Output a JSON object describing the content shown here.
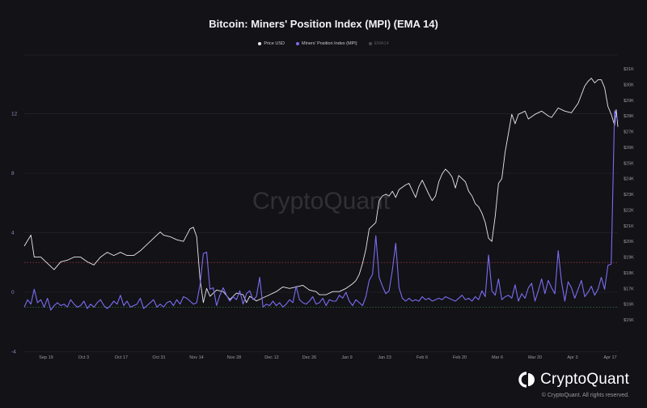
{
  "chart_data": {
    "type": "line",
    "title": "Bitcoin: Miners' Position Index (MPI) (EMA 14)",
    "legend_placement": "top-center",
    "grid": true,
    "watermark": "CryptoQuant",
    "x_tick_labels": [
      "Sep 19",
      "Oct 3",
      "Oct 17",
      "Oct 31",
      "Nov 14",
      "Nov 28",
      "Dec 12",
      "Dec 26",
      "Jan 9",
      "Jan 23",
      "Feb 6",
      "Feb 20",
      "Mar 6",
      "Mar 20",
      "Apr 3",
      "Apr 17"
    ],
    "left_axis": {
      "ticks": [
        "12",
        "8",
        "4",
        "0",
        "-4"
      ],
      "values": [
        12,
        8,
        4,
        0,
        -4
      ],
      "range": [
        -4,
        16
      ]
    },
    "right_axis": {
      "ticks": [
        "$31K",
        "$30K",
        "$29K",
        "$28K",
        "$27K",
        "$26K",
        "$25K",
        "$24K",
        "$23K",
        "$22K",
        "$21K",
        "$20K",
        "$19K",
        "$18K",
        "$17K",
        "$16K",
        "$15K"
      ],
      "values": [
        31,
        30,
        29,
        28,
        27,
        26,
        25,
        24,
        23,
        22,
        21,
        20,
        19,
        18,
        17,
        16,
        15
      ],
      "unit": "thousand USD",
      "range": [
        15,
        31
      ]
    },
    "reference_lines": [
      {
        "axis": "left",
        "value": 2,
        "color": "#b03a3a"
      },
      {
        "axis": "left",
        "value": -1,
        "color": "#3a7a3a"
      }
    ],
    "series": [
      {
        "name": "Price USD",
        "axis": "right",
        "color": "#e8e8ee",
        "points": [
          [
            0,
            19.7
          ],
          [
            2,
            20.4
          ],
          [
            3,
            19.0
          ],
          [
            5,
            19.0
          ],
          [
            7,
            18.6
          ],
          [
            9,
            18.2
          ],
          [
            11,
            18.7
          ],
          [
            13,
            18.8
          ],
          [
            15,
            19.0
          ],
          [
            17,
            19.0
          ],
          [
            19,
            18.7
          ],
          [
            21,
            18.5
          ],
          [
            23,
            19.0
          ],
          [
            25,
            19.3
          ],
          [
            27,
            19.1
          ],
          [
            29,
            19.3
          ],
          [
            31,
            19.1
          ],
          [
            33,
            19.1
          ],
          [
            35,
            19.4
          ],
          [
            37,
            19.8
          ],
          [
            39,
            20.2
          ],
          [
            41,
            20.6
          ],
          [
            42,
            20.4
          ],
          [
            44,
            20.3
          ],
          [
            46,
            20.1
          ],
          [
            48,
            20.0
          ],
          [
            50,
            20.8
          ],
          [
            51,
            20.9
          ],
          [
            52,
            20.3
          ],
          [
            53,
            17.6
          ],
          [
            54,
            16.1
          ],
          [
            55,
            17.0
          ],
          [
            56,
            16.5
          ],
          [
            58,
            16.9
          ],
          [
            60,
            16.8
          ],
          [
            62,
            16.3
          ],
          [
            64,
            16.7
          ],
          [
            66,
            16.6
          ],
          [
            67,
            16.1
          ],
          [
            68,
            16.5
          ],
          [
            70,
            16.2
          ],
          [
            72,
            16.4
          ],
          [
            74,
            16.6
          ],
          [
            76,
            16.8
          ],
          [
            78,
            17.1
          ],
          [
            80,
            17.0
          ],
          [
            82,
            17.1
          ],
          [
            84,
            17.2
          ],
          [
            86,
            16.9
          ],
          [
            88,
            16.8
          ],
          [
            89,
            16.6
          ],
          [
            91,
            16.6
          ],
          [
            93,
            16.8
          ],
          [
            95,
            16.8
          ],
          [
            97,
            17.0
          ],
          [
            99,
            17.3
          ],
          [
            100,
            17.5
          ],
          [
            101,
            17.9
          ],
          [
            102,
            18.6
          ],
          [
            103,
            19.5
          ],
          [
            104,
            20.8
          ],
          [
            106,
            21.2
          ],
          [
            107,
            22.6
          ],
          [
            108,
            22.9
          ],
          [
            109,
            23.0
          ],
          [
            110,
            22.9
          ],
          [
            111,
            23.2
          ],
          [
            112,
            22.8
          ],
          [
            113,
            23.3
          ],
          [
            115,
            23.6
          ],
          [
            116,
            23.7
          ],
          [
            118,
            22.8
          ],
          [
            119,
            23.5
          ],
          [
            120,
            23.9
          ],
          [
            122,
            23.0
          ],
          [
            123,
            22.6
          ],
          [
            124,
            22.9
          ],
          [
            125,
            23.8
          ],
          [
            126,
            24.3
          ],
          [
            127,
            24.6
          ],
          [
            128,
            24.4
          ],
          [
            129,
            24.1
          ],
          [
            130,
            23.4
          ],
          [
            131,
            24.2
          ],
          [
            132,
            24.0
          ],
          [
            133,
            23.8
          ],
          [
            134,
            23.2
          ],
          [
            135,
            22.9
          ],
          [
            136,
            22.4
          ],
          [
            137,
            22.2
          ],
          [
            138,
            21.8
          ],
          [
            139,
            21.2
          ],
          [
            140,
            20.2
          ],
          [
            141,
            20.0
          ],
          [
            142,
            21.6
          ],
          [
            143,
            23.7
          ],
          [
            144,
            24.0
          ],
          [
            145,
            25.7
          ],
          [
            146,
            26.9
          ],
          [
            147,
            28.1
          ],
          [
            148,
            27.5
          ],
          [
            149,
            28.1
          ],
          [
            151,
            28.3
          ],
          [
            152,
            27.8
          ],
          [
            154,
            28.1
          ],
          [
            156,
            28.3
          ],
          [
            158,
            28.0
          ],
          [
            159,
            27.9
          ],
          [
            161,
            28.5
          ],
          [
            163,
            28.3
          ],
          [
            165,
            28.2
          ],
          [
            167,
            28.8
          ],
          [
            169,
            29.9
          ],
          [
            170,
            30.2
          ],
          [
            171,
            30.4
          ],
          [
            172,
            30.1
          ],
          [
            173,
            30.3
          ],
          [
            174,
            30.3
          ],
          [
            175,
            29.8
          ],
          [
            176,
            28.6
          ],
          [
            177,
            28.1
          ],
          [
            178,
            27.4
          ],
          [
            178.5,
            28.4
          ],
          [
            179,
            27.3
          ]
        ]
      },
      {
        "name": "Miners' Position Index (MPI)",
        "axis": "left",
        "color": "#7b6cf0",
        "points": [
          [
            0,
            -1.0
          ],
          [
            1,
            -0.5
          ],
          [
            2,
            -0.8
          ],
          [
            3,
            0.2
          ],
          [
            4,
            -0.7
          ],
          [
            5,
            -0.5
          ],
          [
            6,
            -1.0
          ],
          [
            7,
            -0.4
          ],
          [
            8,
            -1.2
          ],
          [
            9,
            -0.9
          ],
          [
            10,
            -0.7
          ],
          [
            11,
            -0.9
          ],
          [
            12,
            -0.8
          ],
          [
            13,
            -1.0
          ],
          [
            14,
            -0.5
          ],
          [
            15,
            -0.8
          ],
          [
            16,
            -1.0
          ],
          [
            17,
            -0.9
          ],
          [
            18,
            -0.6
          ],
          [
            19,
            -1.1
          ],
          [
            20,
            -0.8
          ],
          [
            21,
            -1.0
          ],
          [
            22,
            -0.7
          ],
          [
            23,
            -0.5
          ],
          [
            24,
            -0.9
          ],
          [
            25,
            -1.1
          ],
          [
            26,
            -0.9
          ],
          [
            27,
            -0.6
          ],
          [
            28,
            -0.8
          ],
          [
            29,
            -0.2
          ],
          [
            30,
            -0.9
          ],
          [
            31,
            -0.6
          ],
          [
            32,
            -1.0
          ],
          [
            33,
            -0.9
          ],
          [
            34,
            -0.8
          ],
          [
            35,
            -0.4
          ],
          [
            36,
            -1.1
          ],
          [
            37,
            -0.9
          ],
          [
            38,
            -0.7
          ],
          [
            39,
            -0.5
          ],
          [
            40,
            -1.0
          ],
          [
            41,
            -0.8
          ],
          [
            42,
            -1.0
          ],
          [
            43,
            -0.7
          ],
          [
            44,
            -0.6
          ],
          [
            45,
            -0.9
          ],
          [
            46,
            -0.5
          ],
          [
            47,
            -0.8
          ],
          [
            48,
            -0.3
          ],
          [
            49,
            -0.4
          ],
          [
            50,
            -0.6
          ],
          [
            51,
            -0.8
          ],
          [
            52,
            -0.7
          ],
          [
            53,
            0.5
          ],
          [
            54,
            2.6
          ],
          [
            55,
            2.7
          ],
          [
            56,
            0.2
          ],
          [
            57,
            0.3
          ],
          [
            58,
            -0.9
          ],
          [
            59,
            -0.2
          ],
          [
            60,
            0.3
          ],
          [
            61,
            -0.2
          ],
          [
            62,
            -0.6
          ],
          [
            63,
            -0.3
          ],
          [
            64,
            -0.5
          ],
          [
            65,
            0.1
          ],
          [
            66,
            -0.8
          ],
          [
            67,
            -0.1
          ],
          [
            68,
            0.1
          ],
          [
            69,
            -0.5
          ],
          [
            70,
            -0.3
          ],
          [
            71,
            1.0
          ],
          [
            72,
            -1.0
          ],
          [
            73,
            -0.8
          ],
          [
            74,
            -0.9
          ],
          [
            75,
            -0.6
          ],
          [
            76,
            -0.9
          ],
          [
            77,
            -0.7
          ],
          [
            78,
            -1.0
          ],
          [
            79,
            -0.8
          ],
          [
            80,
            -0.5
          ],
          [
            81,
            -0.7
          ],
          [
            82,
            0.4
          ],
          [
            83,
            -0.5
          ],
          [
            84,
            -0.7
          ],
          [
            85,
            -0.8
          ],
          [
            86,
            -0.6
          ],
          [
            87,
            -0.3
          ],
          [
            88,
            -0.8
          ],
          [
            89,
            -0.7
          ],
          [
            90,
            -0.4
          ],
          [
            91,
            -0.9
          ],
          [
            92,
            -0.5
          ],
          [
            93,
            -0.6
          ],
          [
            94,
            -0.6
          ],
          [
            95,
            -0.2
          ],
          [
            96,
            -0.4
          ],
          [
            97,
            0.0
          ],
          [
            98,
            -0.6
          ],
          [
            99,
            -0.9
          ],
          [
            100,
            -0.5
          ],
          [
            101,
            -0.7
          ],
          [
            102,
            -0.9
          ],
          [
            103,
            -0.3
          ],
          [
            104,
            0.8
          ],
          [
            105,
            1.2
          ],
          [
            106,
            3.8
          ],
          [
            107,
            1.0
          ],
          [
            108,
            0.4
          ],
          [
            109,
            -0.1
          ],
          [
            110,
            0.1
          ],
          [
            111,
            1.5
          ],
          [
            112,
            3.3
          ],
          [
            113,
            0.3
          ],
          [
            114,
            -0.4
          ],
          [
            115,
            -0.6
          ],
          [
            116,
            -0.4
          ],
          [
            117,
            -0.6
          ],
          [
            118,
            -0.5
          ],
          [
            119,
            -0.6
          ],
          [
            120,
            -0.3
          ],
          [
            121,
            -0.5
          ],
          [
            122,
            -0.4
          ],
          [
            123,
            -0.6
          ],
          [
            124,
            -0.5
          ],
          [
            125,
            -0.4
          ],
          [
            126,
            -0.5
          ],
          [
            127,
            -0.3
          ],
          [
            128,
            -0.4
          ],
          [
            129,
            -0.5
          ],
          [
            130,
            -0.6
          ],
          [
            131,
            -0.4
          ],
          [
            132,
            -0.2
          ],
          [
            133,
            -0.5
          ],
          [
            134,
            -0.4
          ],
          [
            135,
            -0.6
          ],
          [
            136,
            -0.3
          ],
          [
            137,
            -0.5
          ],
          [
            138,
            0.1
          ],
          [
            139,
            -0.3
          ],
          [
            140,
            2.5
          ],
          [
            141,
            0.1
          ],
          [
            142,
            -0.2
          ],
          [
            143,
            0.9
          ],
          [
            144,
            -0.5
          ],
          [
            145,
            -0.3
          ],
          [
            146,
            -0.2
          ],
          [
            147,
            -0.4
          ],
          [
            148,
            0.5
          ],
          [
            149,
            -0.6
          ],
          [
            150,
            -0.1
          ],
          [
            151,
            -0.4
          ],
          [
            152,
            0.3
          ],
          [
            153,
            0.6
          ],
          [
            154,
            -0.6
          ],
          [
            155,
            0.1
          ],
          [
            156,
            0.9
          ],
          [
            157,
            -0.1
          ],
          [
            158,
            0.8
          ],
          [
            159,
            0.3
          ],
          [
            160,
            -0.1
          ],
          [
            161,
            2.8
          ],
          [
            162,
            0.7
          ],
          [
            163,
            -0.6
          ],
          [
            164,
            0.7
          ],
          [
            165,
            0.3
          ],
          [
            166,
            -0.4
          ],
          [
            167,
            0.2
          ],
          [
            168,
            0.8
          ],
          [
            169,
            -0.3
          ],
          [
            170,
            0.0
          ],
          [
            171,
            0.4
          ],
          [
            172,
            -0.2
          ],
          [
            173,
            0.2
          ],
          [
            174,
            1.0
          ],
          [
            175,
            0.2
          ],
          [
            176,
            1.8
          ],
          [
            177,
            1.9
          ],
          [
            178,
            12.2
          ],
          [
            179,
            11.5
          ]
        ]
      },
      {
        "name": "EMA14",
        "axis": "left",
        "color": "#4a4a52",
        "points": []
      }
    ]
  },
  "footer": {
    "brand": "CryptoQuant",
    "copyright": "© CryptoQuant. All rights reserved."
  }
}
